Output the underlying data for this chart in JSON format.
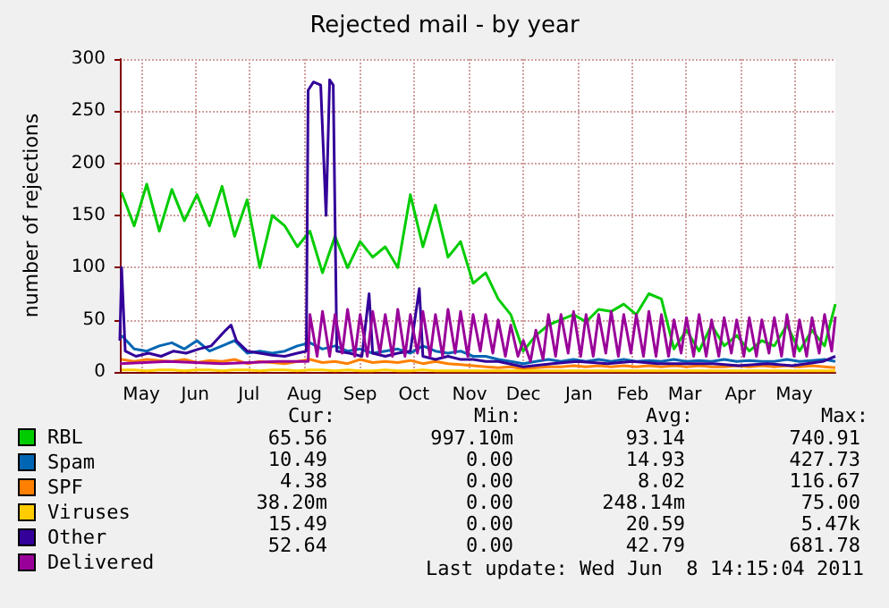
{
  "chart_data": {
    "type": "line",
    "title": "Rejected mail - by year",
    "ylabel": "number of rejections",
    "xlim": [
      "2010-05-05",
      "2011-06-08"
    ],
    "xticks": [
      {
        "value": "2010-05-17",
        "label": "May"
      },
      {
        "value": "2010-06-16",
        "label": "Jun"
      },
      {
        "value": "2010-07-16",
        "label": "Jul"
      },
      {
        "value": "2010-08-16",
        "label": "Aug"
      },
      {
        "value": "2010-09-16",
        "label": "Sep"
      },
      {
        "value": "2010-10-16",
        "label": "Oct"
      },
      {
        "value": "2010-11-16",
        "label": "Nov"
      },
      {
        "value": "2010-12-16",
        "label": "Dec"
      },
      {
        "value": "2011-01-16",
        "label": "Jan"
      },
      {
        "value": "2011-02-15",
        "label": "Feb"
      },
      {
        "value": "2011-03-16",
        "label": "Mar"
      },
      {
        "value": "2011-04-16",
        "label": "Apr"
      },
      {
        "value": "2011-05-16",
        "label": "May"
      }
    ],
    "ylim": [
      0,
      300
    ],
    "yticks": [
      0,
      50,
      100,
      150,
      200,
      250,
      300
    ],
    "grid": true,
    "legend": "bottom left",
    "marker": "none",
    "line_style": "solid",
    "x": [
      "2010-05-06",
      "2010-05-13",
      "2010-05-20",
      "2010-05-27",
      "2010-06-03",
      "2010-06-10",
      "2010-06-17",
      "2010-06-24",
      "2010-07-01",
      "2010-07-08",
      "2010-07-15",
      "2010-07-22",
      "2010-07-29",
      "2010-08-05",
      "2010-08-12",
      "2010-08-19",
      "2010-08-26",
      "2010-09-02",
      "2010-09-09",
      "2010-09-16",
      "2010-09-23",
      "2010-09-30",
      "2010-10-07",
      "2010-10-14",
      "2010-10-21",
      "2010-10-28",
      "2010-11-04",
      "2010-11-11",
      "2010-11-18",
      "2010-11-25",
      "2010-12-02",
      "2010-12-09",
      "2010-12-16",
      "2010-12-23",
      "2010-12-30",
      "2011-01-06",
      "2011-01-13",
      "2011-01-20",
      "2011-01-27",
      "2011-02-03",
      "2011-02-10",
      "2011-02-17",
      "2011-02-24",
      "2011-03-03",
      "2011-03-10",
      "2011-03-17",
      "2011-03-24",
      "2011-03-31",
      "2011-04-07",
      "2011-04-14",
      "2011-04-21",
      "2011-04-28",
      "2011-05-05",
      "2011-05-12",
      "2011-05-19",
      "2011-05-26",
      "2011-06-02",
      "2011-06-08"
    ],
    "series": [
      {
        "name": "RBL",
        "color": "#00cc00",
        "values": [
          172,
          140,
          180,
          135,
          175,
          145,
          170,
          140,
          178,
          130,
          165,
          100,
          150,
          140,
          120,
          135,
          95,
          130,
          100,
          125,
          110,
          120,
          100,
          170,
          120,
          160,
          110,
          125,
          85,
          95,
          70,
          55,
          20,
          35,
          45,
          50,
          55,
          48,
          60,
          58,
          65,
          55,
          75,
          70,
          22,
          40,
          20,
          45,
          25,
          35,
          20,
          30,
          25,
          45,
          20,
          40,
          25,
          65
        ]
      },
      {
        "name": "Spam",
        "color": "#0066b3",
        "values": [
          35,
          22,
          20,
          25,
          28,
          22,
          30,
          20,
          25,
          30,
          18,
          20,
          18,
          20,
          25,
          28,
          22,
          25,
          20,
          22,
          18,
          20,
          22,
          18,
          25,
          20,
          18,
          20,
          15,
          15,
          12,
          10,
          8,
          10,
          12,
          10,
          12,
          10,
          12,
          10,
          12,
          10,
          11,
          10,
          12,
          10,
          11,
          10,
          12,
          10,
          11,
          10,
          10,
          12,
          10,
          11,
          12,
          10
        ]
      },
      {
        "name": "SPF",
        "color": "#ff8000",
        "values": [
          12,
          10,
          12,
          11,
          10,
          12,
          9,
          11,
          10,
          12,
          8,
          10,
          9,
          8,
          10,
          12,
          9,
          10,
          8,
          12,
          9,
          10,
          9,
          11,
          8,
          10,
          8,
          7,
          6,
          5,
          4,
          5,
          3,
          4,
          5,
          5,
          6,
          5,
          6,
          5,
          6,
          5,
          6,
          5,
          6,
          5,
          6,
          5,
          5,
          6,
          5,
          6,
          5,
          6,
          5,
          6,
          5,
          4
        ]
      },
      {
        "name": "Viruses",
        "color": "#ffcc00",
        "values": [
          2,
          2,
          1,
          2,
          2,
          1,
          2,
          2,
          1,
          2,
          2,
          1,
          2,
          2,
          1,
          2,
          2,
          1,
          2,
          1,
          1,
          2,
          1,
          1,
          2,
          1,
          1,
          1,
          1,
          1,
          1,
          1,
          1,
          1,
          1,
          1,
          1,
          1,
          1,
          1,
          1,
          1,
          1,
          1,
          1,
          1,
          1,
          1,
          1,
          1,
          1,
          1,
          1,
          1,
          1,
          1,
          1,
          1
        ]
      },
      {
        "name": "Other",
        "color": "#330099",
        "x": [
          "2010-05-05",
          "2010-05-06",
          "2010-05-08",
          "2010-05-14",
          "2010-05-21",
          "2010-05-28",
          "2010-06-04",
          "2010-06-11",
          "2010-06-18",
          "2010-06-25",
          "2010-07-03",
          "2010-07-06",
          "2010-07-09",
          "2010-07-15",
          "2010-07-22",
          "2010-07-29",
          "2010-08-05",
          "2010-08-12",
          "2010-08-17",
          "2010-08-18",
          "2010-08-21",
          "2010-08-25",
          "2010-08-28",
          "2010-08-30",
          "2010-09-01",
          "2010-09-03",
          "2010-09-10",
          "2010-09-17",
          "2010-09-21",
          "2010-09-23",
          "2010-09-30",
          "2010-10-07",
          "2010-10-14",
          "2010-10-19",
          "2010-10-21",
          "2010-10-28",
          "2010-11-04",
          "2010-11-11",
          "2010-11-18",
          "2010-11-25",
          "2010-12-02",
          "2010-12-16",
          "2011-01-01",
          "2011-01-15",
          "2011-02-01",
          "2011-02-15",
          "2011-03-01",
          "2011-03-15",
          "2011-04-01",
          "2011-04-15",
          "2011-05-01",
          "2011-05-15",
          "2011-06-01",
          "2011-06-08"
        ],
        "values": [
          30,
          100,
          20,
          15,
          18,
          15,
          20,
          18,
          22,
          25,
          40,
          45,
          30,
          20,
          18,
          16,
          15,
          18,
          20,
          270,
          278,
          275,
          150,
          280,
          275,
          20,
          18,
          15,
          75,
          18,
          15,
          18,
          20,
          80,
          15,
          12,
          15,
          12,
          12,
          10,
          10,
          5,
          8,
          10,
          8,
          10,
          8,
          8,
          8,
          6,
          8,
          6,
          10,
          15
        ]
      },
      {
        "name": "Delivered",
        "color": "#990099",
        "x": [
          "2010-05-05",
          "2010-06-01",
          "2010-07-01",
          "2010-08-01",
          "2010-08-18",
          "2010-08-19",
          "2010-08-23",
          "2010-08-26",
          "2010-08-30",
          "2010-09-02",
          "2010-09-06",
          "2010-09-09",
          "2010-09-13",
          "2010-09-16",
          "2010-09-20",
          "2010-09-23",
          "2010-09-27",
          "2010-09-30",
          "2010-10-04",
          "2010-10-07",
          "2010-10-11",
          "2010-10-14",
          "2010-10-18",
          "2010-10-21",
          "2010-10-25",
          "2010-10-28",
          "2010-11-01",
          "2010-11-04",
          "2010-11-08",
          "2010-11-11",
          "2010-11-15",
          "2010-11-18",
          "2010-11-22",
          "2010-11-25",
          "2010-11-29",
          "2010-12-02",
          "2010-12-06",
          "2010-12-09",
          "2010-12-13",
          "2010-12-16",
          "2010-12-20",
          "2010-12-23",
          "2010-12-27",
          "2010-12-30",
          "2011-01-03",
          "2011-01-06",
          "2011-01-10",
          "2011-01-13",
          "2011-01-17",
          "2011-01-20",
          "2011-01-24",
          "2011-01-27",
          "2011-01-31",
          "2011-02-03",
          "2011-02-07",
          "2011-02-10",
          "2011-02-14",
          "2011-02-17",
          "2011-02-21",
          "2011-02-24",
          "2011-02-28",
          "2011-03-03",
          "2011-03-07",
          "2011-03-10",
          "2011-03-14",
          "2011-03-17",
          "2011-03-21",
          "2011-03-24",
          "2011-03-28",
          "2011-03-31",
          "2011-04-04",
          "2011-04-07",
          "2011-04-11",
          "2011-04-14",
          "2011-04-18",
          "2011-04-21",
          "2011-04-25",
          "2011-04-28",
          "2011-05-02",
          "2011-05-05",
          "2011-05-09",
          "2011-05-12",
          "2011-05-16",
          "2011-05-19",
          "2011-05-23",
          "2011-05-26",
          "2011-05-30",
          "2011-06-02",
          "2011-06-06",
          "2011-06-08"
        ],
        "values": [
          8,
          10,
          8,
          10,
          10,
          55,
          15,
          58,
          15,
          55,
          18,
          60,
          15,
          55,
          15,
          58,
          18,
          55,
          15,
          60,
          15,
          55,
          18,
          58,
          15,
          55,
          15,
          60,
          18,
          58,
          15,
          55,
          20,
          55,
          18,
          50,
          15,
          45,
          15,
          30,
          10,
          40,
          12,
          55,
          15,
          55,
          18,
          58,
          15,
          55,
          15,
          55,
          18,
          58,
          15,
          55,
          18,
          55,
          15,
          58,
          15,
          55,
          15,
          50,
          18,
          52,
          15,
          55,
          15,
          50,
          15,
          52,
          18,
          50,
          15,
          52,
          15,
          50,
          18,
          52,
          15,
          55,
          15,
          50,
          15,
          52,
          18,
          55,
          20,
          53
        ]
      }
    ],
    "annotations": [
      "Cur:",
      "Min:",
      "Avg:",
      "Max:",
      "65.56",
      "997.10m",
      "93.14",
      "740.91",
      "10.49",
      "0.00",
      "14.93",
      "427.73",
      "4.38",
      "0.00",
      "8.02",
      "116.67",
      "38.20m",
      "0.00",
      "248.14m",
      "75.00",
      "15.49",
      "0.00",
      "20.59",
      "5.47k",
      "52.64",
      "0.00",
      "42.79",
      "681.78",
      "Last update: Wed Jun  8 14:15:04 2011"
    ]
  }
}
